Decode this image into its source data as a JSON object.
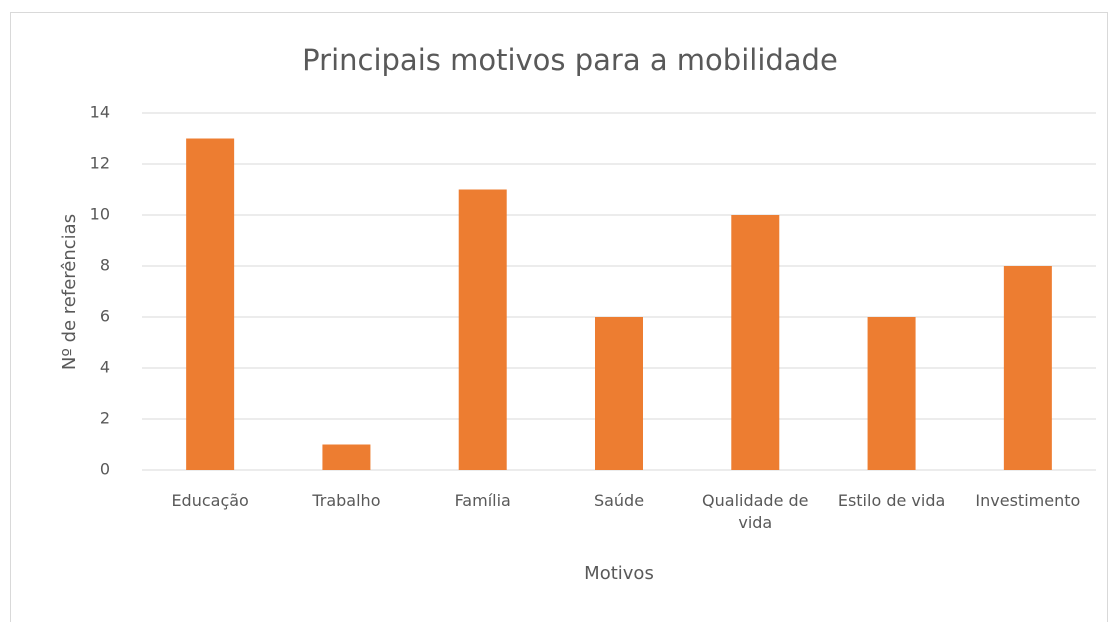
{
  "chart_data": {
    "type": "bar",
    "title": "Principais motivos para a mobilidade",
    "x_label": "Motivos",
    "y_label": "Nº de referências",
    "categories": [
      "Educação",
      "Trabalho",
      "Família",
      "Saúde",
      "Qualidade de vida",
      "Estilo de vida",
      "Investimento"
    ],
    "values": [
      13,
      1,
      11,
      6,
      10,
      6,
      8
    ],
    "color": "#ed7d31",
    "ylim": [
      0,
      14
    ],
    "yticks": [
      0,
      2,
      4,
      6,
      8,
      10,
      12,
      14
    ],
    "grid": true
  }
}
